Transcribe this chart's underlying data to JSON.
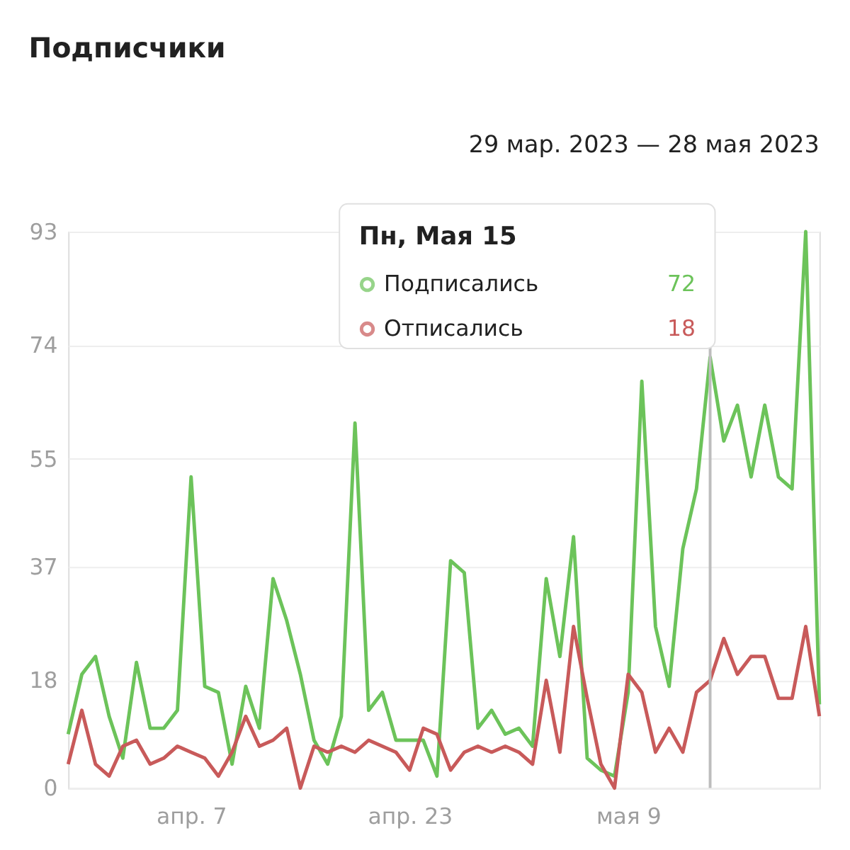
{
  "chart_data": {
    "type": "line",
    "title": "Подписчики",
    "subtitle": "29 мар. 2023 — 28 мая 2023",
    "x": [
      "2023-03-29",
      "2023-03-30",
      "2023-03-31",
      "2023-04-01",
      "2023-04-02",
      "2023-04-03",
      "2023-04-04",
      "2023-04-05",
      "2023-04-06",
      "2023-04-07",
      "2023-04-08",
      "2023-04-09",
      "2023-04-10",
      "2023-04-11",
      "2023-04-12",
      "2023-04-13",
      "2023-04-14",
      "2023-04-15",
      "2023-04-16",
      "2023-04-17",
      "2023-04-18",
      "2023-04-19",
      "2023-04-20",
      "2023-04-21",
      "2023-04-22",
      "2023-04-23",
      "2023-04-24",
      "2023-04-25",
      "2023-04-26",
      "2023-04-27",
      "2023-04-28",
      "2023-04-29",
      "2023-04-30",
      "2023-05-01",
      "2023-05-02",
      "2023-05-03",
      "2023-05-04",
      "2023-05-05",
      "2023-05-06",
      "2023-05-07",
      "2023-05-08",
      "2023-05-09",
      "2023-05-10",
      "2023-05-11",
      "2023-05-12",
      "2023-05-13",
      "2023-05-14",
      "2023-05-15",
      "2023-05-16",
      "2023-05-17",
      "2023-05-18",
      "2023-05-19",
      "2023-05-20",
      "2023-05-21",
      "2023-05-22",
      "2023-05-23"
    ],
    "series": [
      {
        "name": "Подписались",
        "color": "#6cc35a",
        "values": [
          9,
          19,
          22,
          12,
          5,
          21,
          10,
          10,
          13,
          52,
          17,
          16,
          4,
          17,
          10,
          35,
          28,
          19,
          8,
          4,
          12,
          61,
          13,
          16,
          8,
          8,
          8,
          2,
          38,
          36,
          10,
          13,
          9,
          10,
          7,
          35,
          22,
          42,
          5,
          3,
          2,
          16,
          68,
          27,
          17,
          40,
          50,
          72,
          58,
          64,
          52,
          64,
          52,
          50,
          93,
          14
        ]
      },
      {
        "name": "Отписались",
        "color": "#c85a5a",
        "values": [
          4,
          13,
          4,
          2,
          7,
          8,
          4,
          5,
          7,
          6,
          5,
          2,
          6,
          12,
          7,
          8,
          10,
          0,
          7,
          6,
          7,
          6,
          8,
          7,
          6,
          3,
          10,
          9,
          3,
          6,
          7,
          6,
          7,
          6,
          4,
          18,
          6,
          27,
          15,
          4,
          0,
          19,
          16,
          6,
          10,
          6,
          16,
          18,
          25,
          19,
          22,
          22,
          15,
          15,
          27,
          12
        ]
      }
    ],
    "annotations": [
      "Пн, Мая 15",
      "72",
      "18"
    ],
    "ref_lines": [
      {
        "axis": "x",
        "value": "2023-05-15",
        "color": "#bdbdbd"
      }
    ],
    "xlim": [
      "2023-03-29",
      "2023-05-23"
    ],
    "xticks": [
      {
        "value": "2023-04-07",
        "label": "апр. 7"
      },
      {
        "value": "2023-04-23",
        "label": "апр. 23"
      },
      {
        "value": "2023-05-09",
        "label": "мая 9"
      }
    ],
    "ylim": [
      0,
      93
    ],
    "yticks": [
      0,
      18,
      37,
      55,
      74,
      93
    ],
    "grid": "y",
    "legend": "top",
    "marker": "none",
    "line_style": "solid"
  }
}
